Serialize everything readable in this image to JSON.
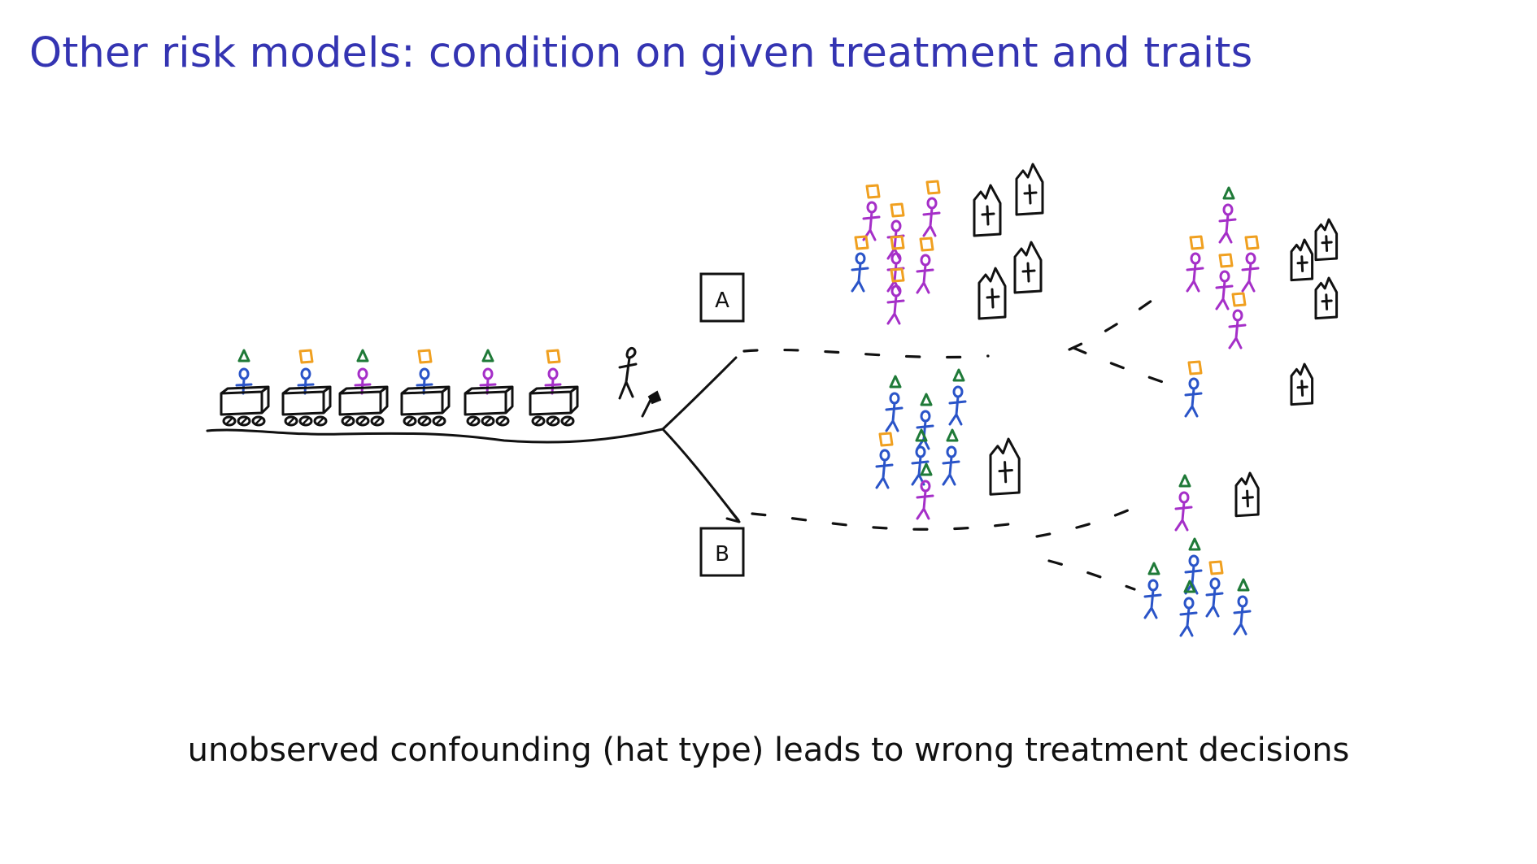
{
  "slide": {
    "title": "Other risk models: condition on given treatment and traits",
    "caption": "unobserved confounding (hat type) leads to wrong treatment decisions"
  },
  "diagram": {
    "labels": {
      "a": "A",
      "b": "B"
    }
  },
  "colors": {
    "title": "#3434b2",
    "blue": "#2a54c8",
    "purple": "#a52fc8",
    "green": "#1f7a38",
    "orange": "#f0a020",
    "ink": "#111111"
  }
}
